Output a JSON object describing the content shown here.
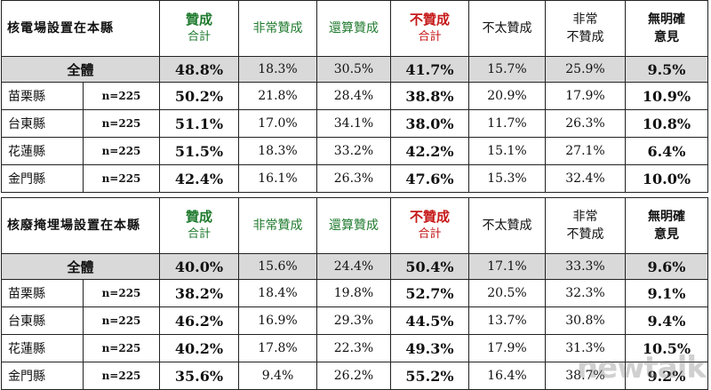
{
  "headers": {
    "support_total": [
      "贊成",
      "合計"
    ],
    "strongly_support": "非常贊成",
    "somewhat_support": "還算贊成",
    "oppose_total": [
      "不贊成",
      "合計"
    ],
    "somewhat_oppose": "不太贊成",
    "strongly_oppose": [
      "非常",
      "不贊成"
    ],
    "no_opinion": [
      "無明確",
      "意見"
    ]
  },
  "colors": {
    "support": "#1f7a2e",
    "oppose": "#c61a1a",
    "total_bg": "#d9d9d9"
  },
  "tables": [
    {
      "topic": "核電場設置在本縣",
      "total": {
        "label": "全體",
        "values": [
          "48.8%",
          "18.3%",
          "30.5%",
          "41.7%",
          "15.7%",
          "25.9%",
          "9.5%"
        ]
      },
      "rows": [
        {
          "county": "苗栗縣",
          "n": "n=225",
          "values": [
            "50.2%",
            "21.8%",
            "28.4%",
            "38.8%",
            "20.9%",
            "17.9%",
            "10.9%"
          ]
        },
        {
          "county": "台東縣",
          "n": "n=225",
          "values": [
            "51.1%",
            "17.0%",
            "34.1%",
            "38.0%",
            "11.7%",
            "26.3%",
            "10.8%"
          ]
        },
        {
          "county": "花蓮縣",
          "n": "n=225",
          "values": [
            "51.5%",
            "18.3%",
            "33.2%",
            "42.2%",
            "15.1%",
            "27.1%",
            "6.4%"
          ]
        },
        {
          "county": "金門縣",
          "n": "n=225",
          "values": [
            "42.4%",
            "16.1%",
            "26.3%",
            "47.6%",
            "15.3%",
            "32.4%",
            "10.0%"
          ]
        }
      ]
    },
    {
      "topic": "核廢掩埋場設置在本縣",
      "total": {
        "label": "全體",
        "values": [
          "40.0%",
          "15.6%",
          "24.4%",
          "50.4%",
          "17.1%",
          "33.3%",
          "9.6%"
        ]
      },
      "rows": [
        {
          "county": "苗栗縣",
          "n": "n=225",
          "values": [
            "38.2%",
            "18.4%",
            "19.8%",
            "52.7%",
            "20.5%",
            "32.3%",
            "9.1%"
          ]
        },
        {
          "county": "台東縣",
          "n": "n=225",
          "values": [
            "46.2%",
            "16.9%",
            "29.3%",
            "44.5%",
            "13.7%",
            "30.8%",
            "9.4%"
          ]
        },
        {
          "county": "花蓮縣",
          "n": "n=225",
          "values": [
            "40.2%",
            "17.8%",
            "22.3%",
            "49.3%",
            "17.9%",
            "31.3%",
            "10.5%"
          ]
        },
        {
          "county": "金門縣",
          "n": "n=225",
          "values": [
            "35.6%",
            "9.4%",
            "26.2%",
            "55.2%",
            "16.4%",
            "38.7%",
            "9.2%"
          ]
        }
      ]
    }
  ],
  "watermark": "newtalk"
}
